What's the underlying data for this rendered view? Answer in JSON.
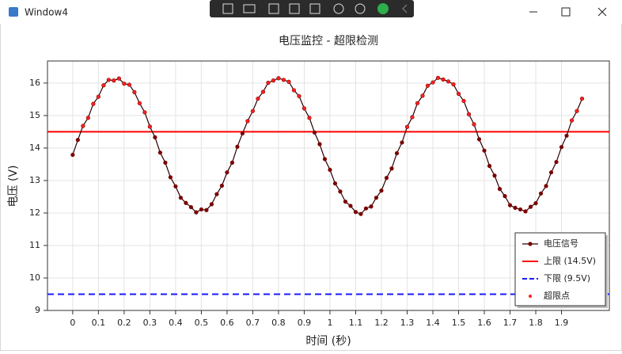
{
  "window": {
    "title": "Window4"
  },
  "chart_data": {
    "type": "line",
    "title": "电压监控 - 超限检测",
    "xlabel": "时间 (秒)",
    "ylabel": "电压 (V)",
    "x": [
      0,
      0.02,
      0.04,
      0.06,
      0.08,
      0.1,
      0.12,
      0.14,
      0.16,
      0.18,
      0.2,
      0.22,
      0.24,
      0.26,
      0.28,
      0.3,
      0.32,
      0.34,
      0.36,
      0.38,
      0.4,
      0.42,
      0.44,
      0.46,
      0.48,
      0.5,
      0.52,
      0.54,
      0.56,
      0.58,
      0.6,
      0.62,
      0.64,
      0.66,
      0.68,
      0.7,
      0.72,
      0.74,
      0.76,
      0.78,
      0.8,
      0.82,
      0.84,
      0.86,
      0.88,
      0.9,
      0.92,
      0.94,
      0.96,
      0.98,
      1,
      1.02,
      1.04,
      1.06,
      1.08,
      1.1,
      1.12,
      1.14,
      1.16,
      1.18,
      1.2,
      1.22,
      1.24,
      1.26,
      1.28,
      1.3,
      1.32,
      1.34,
      1.36,
      1.38,
      1.4,
      1.42,
      1.44,
      1.46,
      1.48,
      1.5,
      1.52,
      1.54,
      1.56,
      1.58,
      1.6,
      1.62,
      1.64,
      1.66,
      1.68,
      1.7,
      1.72,
      1.74,
      1.76,
      1.78,
      1.8,
      1.82,
      1.84,
      1.86,
      1.88,
      1.9,
      1.92,
      1.94,
      1.96,
      1.98
    ],
    "series": [
      {
        "name": "电压信号",
        "color": "#7a0000",
        "marker": "circle",
        "values": [
          13.79,
          14.25,
          14.68,
          14.93,
          15.36,
          15.58,
          15.93,
          16.1,
          16.08,
          16.14,
          15.98,
          15.95,
          15.72,
          15.38,
          15.1,
          14.66,
          14.33,
          13.86,
          13.55,
          13.1,
          12.82,
          12.47,
          12.31,
          12.18,
          12.02,
          12.11,
          12.09,
          12.27,
          12.58,
          12.84,
          13.25,
          13.55,
          14.04,
          14.45,
          14.83,
          15.14,
          15.52,
          15.73,
          16.01,
          16.08,
          16.15,
          16.1,
          16.04,
          15.78,
          15.6,
          15.22,
          14.93,
          14.48,
          14.12,
          13.66,
          13.33,
          12.91,
          12.66,
          12.35,
          12.22,
          12.03,
          11.97,
          12.14,
          12.2,
          12.47,
          12.69,
          13.08,
          13.37,
          13.84,
          14.17,
          14.65,
          14.95,
          15.38,
          15.61,
          15.92,
          16.02,
          16.16,
          16.11,
          16.05,
          15.96,
          15.67,
          15.45,
          15.04,
          14.73,
          14.27,
          13.92,
          13.45,
          13.15,
          12.74,
          12.52,
          12.24,
          12.16,
          12.11,
          12.05,
          12.19,
          12.3,
          12.6,
          12.83,
          13.25,
          13.57,
          14.03,
          14.38,
          14.85,
          15.14,
          15.52
        ]
      },
      {
        "name": "超限点",
        "color": "#ff2020",
        "marker": "dot",
        "line": false,
        "values": [
          null,
          null,
          14.68,
          14.93,
          15.36,
          15.58,
          15.93,
          16.1,
          16.08,
          16.14,
          15.98,
          15.95,
          15.72,
          15.38,
          15.1,
          14.66,
          null,
          null,
          null,
          null,
          null,
          null,
          null,
          null,
          null,
          null,
          null,
          null,
          null,
          null,
          null,
          null,
          null,
          null,
          14.83,
          15.14,
          15.52,
          15.73,
          16.01,
          16.08,
          16.15,
          16.1,
          16.04,
          15.78,
          15.6,
          15.22,
          14.93,
          null,
          null,
          null,
          null,
          null,
          null,
          null,
          null,
          null,
          null,
          null,
          null,
          null,
          null,
          null,
          null,
          null,
          null,
          14.65,
          14.95,
          15.38,
          15.61,
          15.92,
          16.02,
          16.16,
          16.11,
          16.05,
          15.96,
          15.67,
          15.45,
          15.04,
          14.73,
          null,
          null,
          null,
          null,
          null,
          null,
          null,
          null,
          null,
          null,
          null,
          null,
          null,
          null,
          null,
          null,
          null,
          null,
          14.85,
          15.14,
          15.52
        ]
      }
    ],
    "hlines": [
      {
        "name": "上限 (14.5V)",
        "value": 14.5,
        "color": "#ff0000",
        "dashed": false
      },
      {
        "name": "下限 (9.5V)",
        "value": 9.5,
        "color": "#1a1aff",
        "dashed": true
      }
    ],
    "legend_order": [
      "series.0",
      "hlines.0",
      "hlines.1",
      "series.1"
    ],
    "xlim": [
      -0.098,
      2.086
    ],
    "ylim": [
      9,
      16.68
    ],
    "xticks": [
      0,
      0.1,
      0.2,
      0.3,
      0.4,
      0.5,
      0.6,
      0.7,
      0.8,
      0.9,
      1,
      1.1,
      1.2,
      1.3,
      1.4,
      1.5,
      1.6,
      1.7,
      1.8,
      1.9
    ],
    "yticks": [
      9,
      10,
      11,
      12,
      13,
      14,
      15,
      16
    ],
    "grid": true,
    "legend": "lower right"
  }
}
